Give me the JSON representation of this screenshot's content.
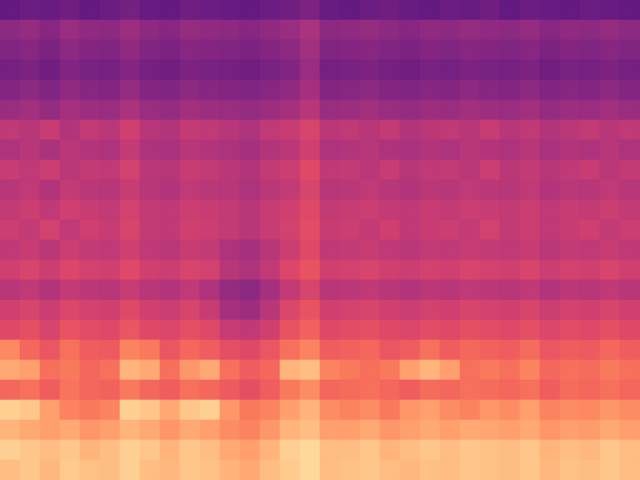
{
  "chart_data": {
    "type": "heatmap",
    "color": "magma",
    "tick_labels": false,
    "zlim": [
      0,
      100
    ],
    "cells": [
      [
        30,
        32,
        31,
        33,
        30,
        32,
        34,
        31,
        30,
        33,
        32,
        31,
        30,
        32,
        33,
        36,
        31,
        30,
        32,
        33,
        31,
        30,
        32,
        31,
        33,
        30,
        32,
        31,
        30,
        32,
        31,
        30
      ],
      [
        40,
        42,
        39,
        43,
        41,
        40,
        44,
        40,
        39,
        42,
        41,
        40,
        39,
        41,
        43,
        47,
        40,
        41,
        42,
        40,
        39,
        41,
        40,
        42,
        41,
        40,
        42,
        39,
        41,
        40,
        42,
        40
      ],
      [
        37,
        39,
        36,
        40,
        38,
        37,
        41,
        37,
        36,
        39,
        38,
        37,
        36,
        38,
        40,
        45,
        37,
        38,
        39,
        37,
        36,
        38,
        37,
        39,
        38,
        37,
        39,
        36,
        38,
        37,
        39,
        37
      ],
      [
        34,
        36,
        33,
        37,
        35,
        34,
        38,
        34,
        33,
        36,
        35,
        34,
        33,
        35,
        37,
        43,
        34,
        35,
        36,
        34,
        33,
        35,
        34,
        36,
        35,
        34,
        36,
        33,
        35,
        34,
        36,
        34
      ],
      [
        38,
        40,
        37,
        41,
        39,
        38,
        42,
        38,
        37,
        40,
        39,
        38,
        37,
        39,
        41,
        46,
        38,
        39,
        40,
        38,
        37,
        39,
        38,
        40,
        39,
        38,
        40,
        37,
        39,
        38,
        40,
        38
      ],
      [
        43,
        45,
        42,
        46,
        44,
        43,
        47,
        43,
        42,
        45,
        44,
        43,
        42,
        44,
        46,
        50,
        43,
        44,
        45,
        43,
        42,
        44,
        43,
        45,
        44,
        43,
        45,
        42,
        44,
        43,
        45,
        43
      ],
      [
        52,
        50,
        54,
        49,
        53,
        51,
        56,
        50,
        49,
        53,
        52,
        50,
        48,
        52,
        54,
        58,
        51,
        52,
        50,
        53,
        49,
        51,
        52,
        50,
        54,
        50,
        52,
        49,
        51,
        53,
        50,
        52
      ],
      [
        48,
        50,
        47,
        51,
        49,
        48,
        53,
        48,
        47,
        50,
        49,
        48,
        46,
        49,
        51,
        56,
        48,
        49,
        50,
        48,
        47,
        49,
        48,
        50,
        49,
        48,
        50,
        47,
        49,
        48,
        50,
        48
      ],
      [
        54,
        52,
        55,
        51,
        53,
        52,
        57,
        51,
        50,
        54,
        53,
        51,
        49,
        53,
        55,
        60,
        52,
        53,
        51,
        54,
        50,
        52,
        53,
        51,
        55,
        51,
        53,
        50,
        52,
        54,
        51,
        53
      ],
      [
        50,
        52,
        49,
        53,
        51,
        50,
        54,
        50,
        49,
        52,
        51,
        50,
        48,
        51,
        53,
        58,
        50,
        51,
        52,
        50,
        49,
        51,
        50,
        52,
        51,
        50,
        52,
        49,
        51,
        50,
        52,
        50
      ],
      [
        53,
        55,
        52,
        56,
        54,
        53,
        57,
        53,
        52,
        55,
        54,
        53,
        50,
        54,
        56,
        60,
        53,
        54,
        55,
        53,
        52,
        54,
        53,
        55,
        54,
        53,
        55,
        52,
        54,
        53,
        55,
        53
      ],
      [
        55,
        53,
        57,
        52,
        56,
        54,
        58,
        53,
        52,
        56,
        55,
        53,
        50,
        54,
        57,
        61,
        54,
        55,
        53,
        56,
        52,
        54,
        55,
        53,
        57,
        53,
        55,
        52,
        54,
        56,
        53,
        55
      ],
      [
        52,
        54,
        51,
        55,
        53,
        52,
        56,
        52,
        51,
        54,
        53,
        48,
        46,
        50,
        55,
        60,
        52,
        53,
        54,
        52,
        51,
        53,
        52,
        54,
        53,
        52,
        54,
        51,
        53,
        52,
        54,
        52
      ],
      [
        56,
        58,
        55,
        59,
        57,
        56,
        60,
        56,
        55,
        58,
        57,
        50,
        48,
        52,
        59,
        63,
        56,
        57,
        58,
        56,
        55,
        57,
        56,
        58,
        57,
        56,
        58,
        55,
        57,
        56,
        58,
        56
      ],
      [
        50,
        52,
        49,
        53,
        51,
        50,
        54,
        50,
        49,
        52,
        48,
        42,
        40,
        46,
        53,
        58,
        50,
        51,
        52,
        50,
        49,
        51,
        50,
        52,
        51,
        50,
        52,
        49,
        51,
        50,
        52,
        50
      ],
      [
        56,
        58,
        55,
        59,
        57,
        56,
        60,
        56,
        55,
        58,
        54,
        46,
        44,
        50,
        59,
        63,
        56,
        57,
        58,
        56,
        55,
        57,
        56,
        58,
        57,
        56,
        58,
        55,
        57,
        56,
        58,
        56
      ],
      [
        60,
        62,
        58,
        63,
        61,
        60,
        64,
        60,
        59,
        62,
        60,
        54,
        52,
        56,
        63,
        67,
        60,
        61,
        62,
        60,
        59,
        61,
        60,
        62,
        61,
        60,
        62,
        59,
        61,
        60,
        62,
        60
      ],
      [
        75,
        68,
        64,
        70,
        66,
        65,
        74,
        72,
        64,
        68,
        66,
        62,
        60,
        64,
        70,
        74,
        66,
        67,
        68,
        64,
        66,
        70,
        66,
        68,
        67,
        66,
        69,
        64,
        66,
        65,
        68,
        66
      ],
      [
        82,
        80,
        70,
        72,
        68,
        70,
        84,
        82,
        70,
        78,
        82,
        70,
        66,
        68,
        84,
        86,
        74,
        72,
        70,
        72,
        80,
        84,
        80,
        70,
        72,
        70,
        74,
        68,
        70,
        69,
        72,
        70
      ],
      [
        68,
        70,
        66,
        71,
        68,
        67,
        72,
        68,
        66,
        70,
        68,
        65,
        62,
        66,
        72,
        76,
        68,
        69,
        70,
        68,
        66,
        69,
        68,
        70,
        69,
        68,
        70,
        66,
        69,
        68,
        70,
        68
      ],
      [
        90,
        88,
        80,
        74,
        72,
        74,
        90,
        88,
        82,
        88,
        90,
        78,
        72,
        74,
        80,
        84,
        76,
        74,
        76,
        72,
        78,
        80,
        76,
        74,
        78,
        76,
        80,
        74,
        76,
        75,
        78,
        76
      ],
      [
        84,
        82,
        80,
        82,
        78,
        80,
        84,
        82,
        78,
        82,
        80,
        76,
        74,
        78,
        84,
        86,
        80,
        80,
        82,
        78,
        80,
        82,
        80,
        82,
        81,
        80,
        82,
        78,
        80,
        79,
        82,
        80
      ],
      [
        90,
        88,
        86,
        88,
        84,
        86,
        90,
        88,
        84,
        88,
        86,
        82,
        80,
        84,
        90,
        92,
        86,
        86,
        88,
        84,
        86,
        88,
        86,
        88,
        87,
        86,
        88,
        84,
        86,
        85,
        88,
        86
      ],
      [
        86,
        88,
        85,
        89,
        87,
        86,
        90,
        86,
        85,
        88,
        87,
        84,
        82,
        86,
        89,
        92,
        86,
        87,
        88,
        86,
        85,
        87,
        86,
        88,
        87,
        86,
        88,
        85,
        87,
        86,
        88,
        86
      ]
    ]
  }
}
